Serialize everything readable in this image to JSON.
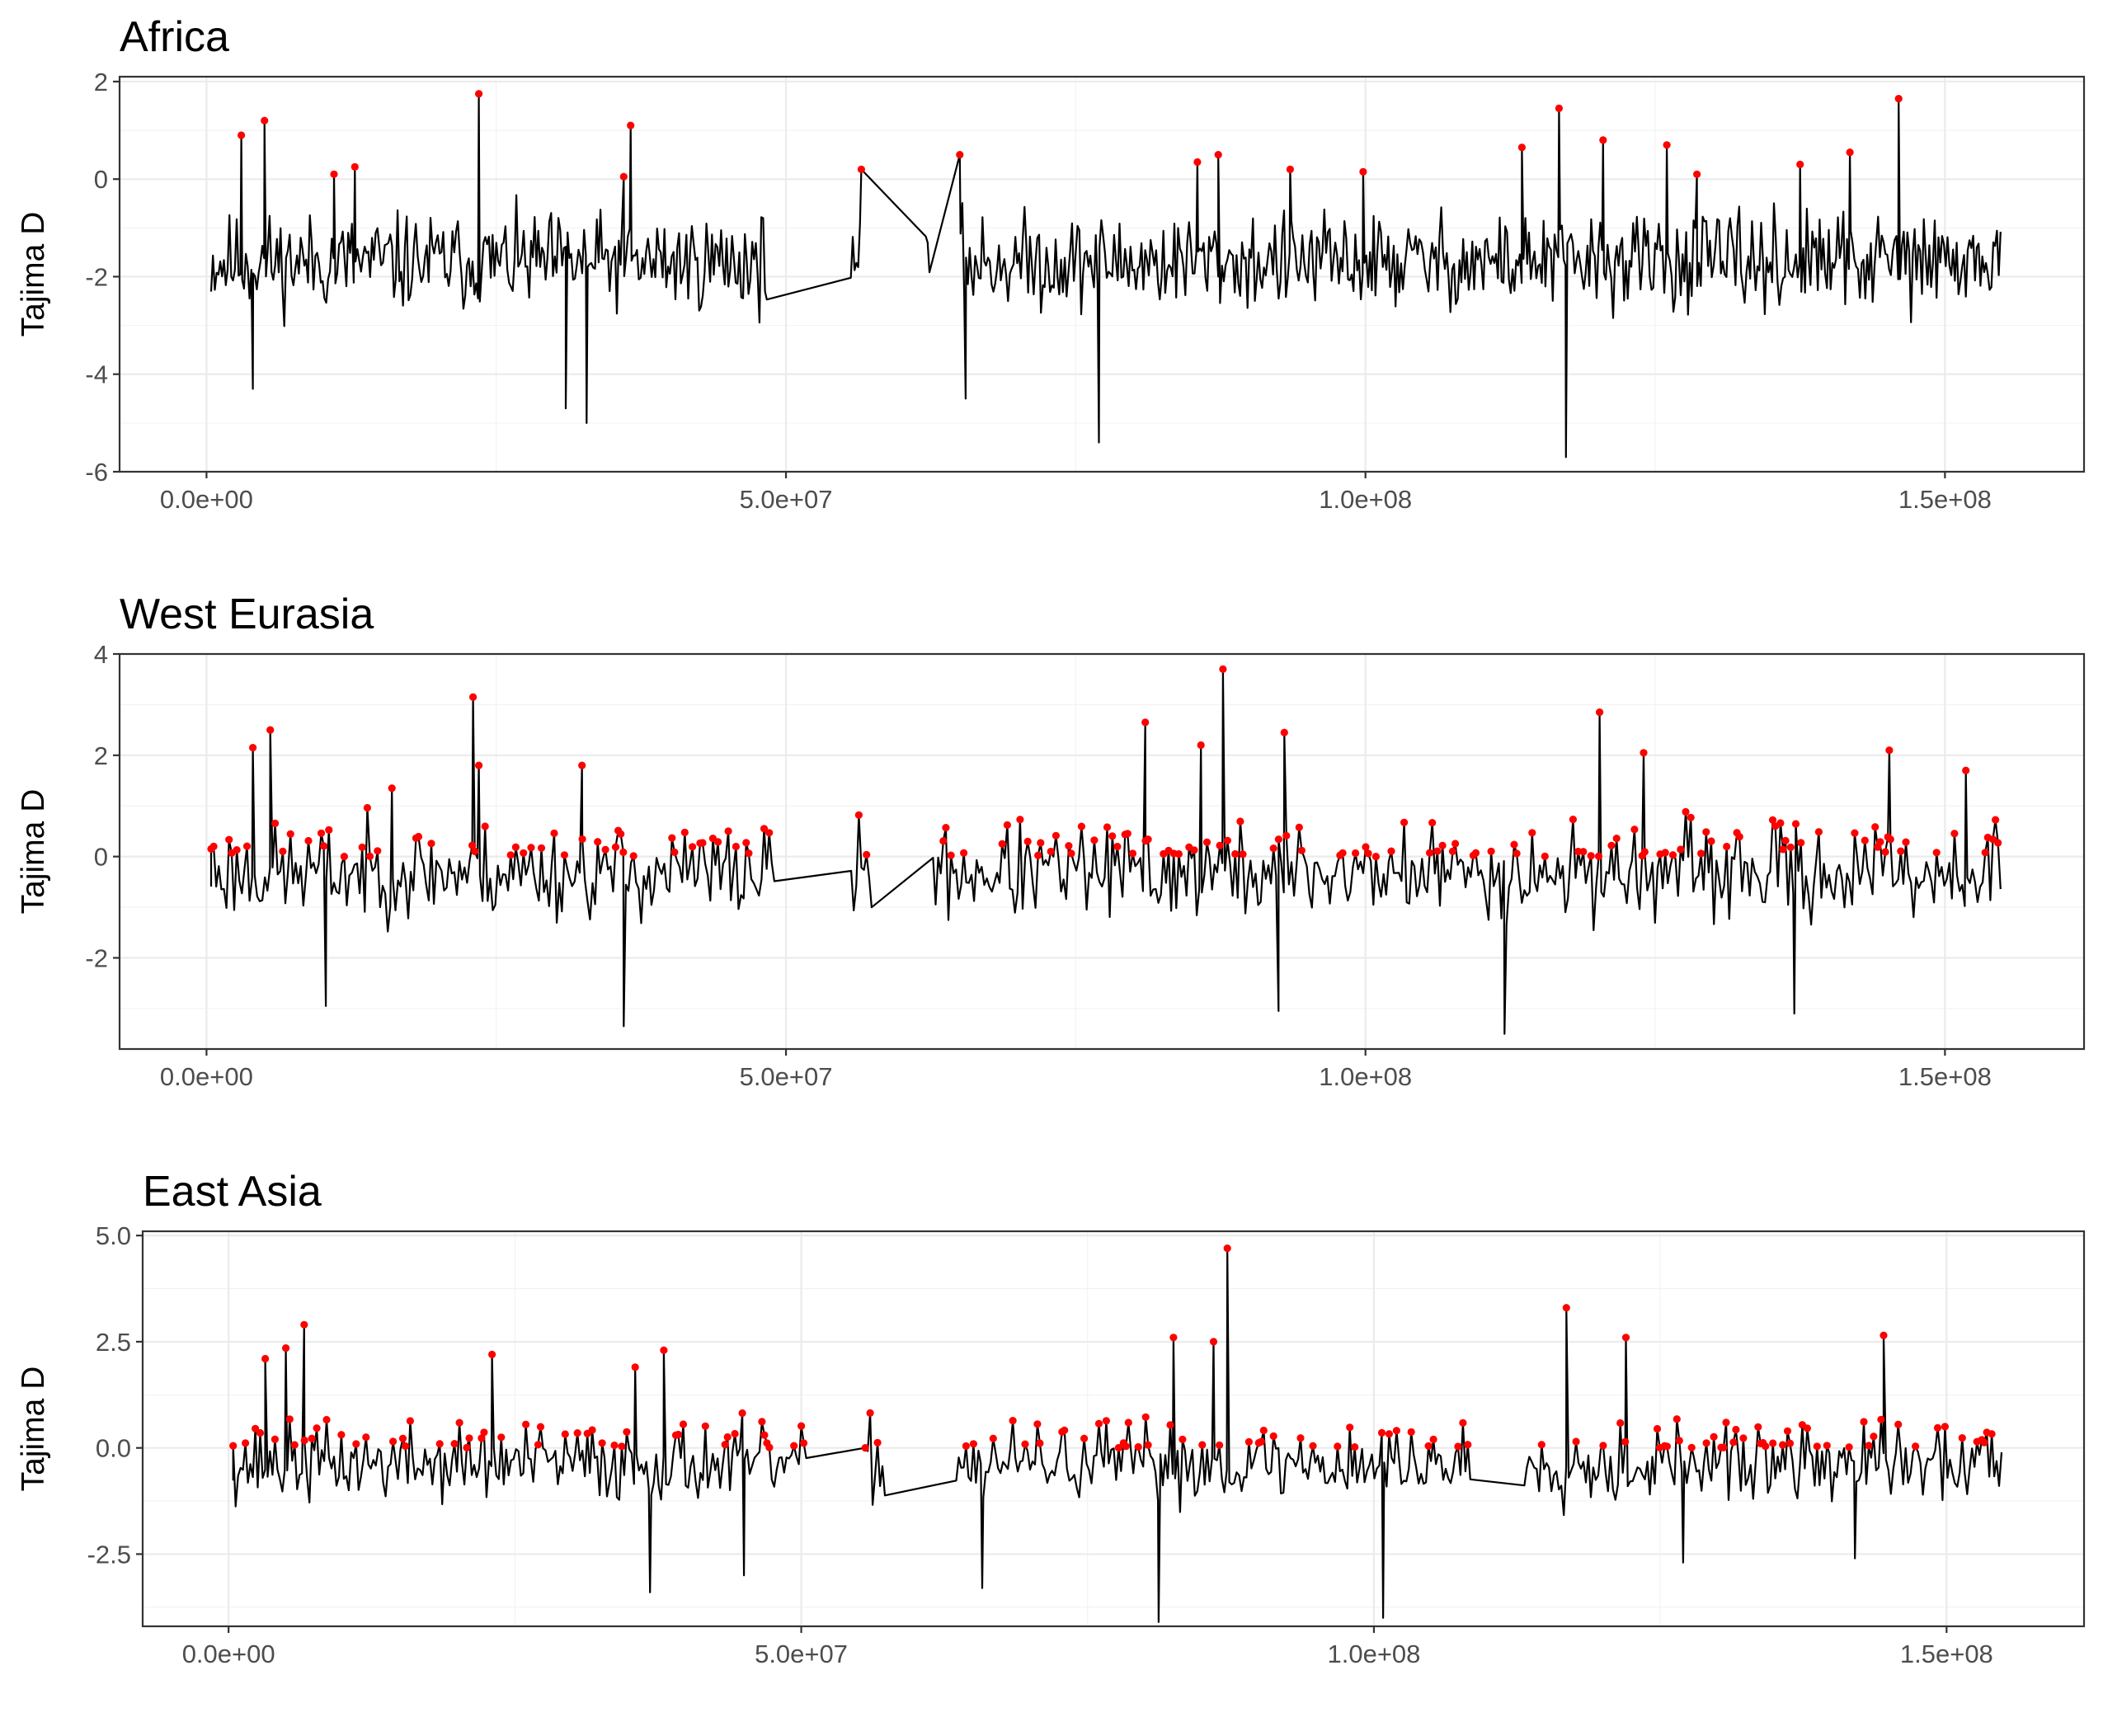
{
  "chart_data": [
    {
      "type": "line",
      "title": "Africa",
      "ylabel": "Tajima D",
      "xlabel": "",
      "xlim": [
        -7500000,
        162000000
      ],
      "ylim": [
        -6.0,
        2.1
      ],
      "x_ticks": [
        0,
        50000000,
        100000000,
        150000000
      ],
      "x_tick_labels": [
        "0.0e+00",
        "5.0e+07",
        "1.0e+08",
        "1.5e+08"
      ],
      "y_ticks": [
        -6,
        -4,
        -2,
        0,
        2
      ],
      "y_tick_labels": [
        "-6",
        "-4",
        "-2",
        "0",
        "2"
      ],
      "line_color": "#000000",
      "highlight_color": "#ff0000",
      "highlight_threshold": 0.0,
      "seed": 11,
      "n_points": 980,
      "x_start": 400000,
      "x_end": 154800000,
      "mean": -1.7,
      "spread": 0.9,
      "gaps": [
        [
          48500000,
          55500000
        ],
        [
          56500000,
          62000000
        ],
        [
          62500000,
          65000000
        ]
      ],
      "anchors": [
        [
          3000000,
          0.9
        ],
        [
          5000000,
          1.2
        ],
        [
          11000000,
          0.1
        ],
        [
          12800000,
          0.25
        ],
        [
          23500000,
          1.75
        ],
        [
          36000000,
          0.05
        ],
        [
          36600000,
          1.1
        ],
        [
          56500000,
          0.2
        ],
        [
          65000000,
          0.5
        ],
        [
          85500000,
          0.35
        ],
        [
          87300000,
          0.5
        ],
        [
          93500000,
          0.2
        ],
        [
          99800000,
          0.15
        ],
        [
          113500000,
          0.65
        ],
        [
          116700000,
          1.45
        ],
        [
          120500000,
          0.8
        ],
        [
          126000000,
          0.7
        ],
        [
          128600000,
          0.1
        ],
        [
          137500000,
          0.3
        ],
        [
          141800000,
          0.55
        ],
        [
          146000000,
          1.65
        ],
        [
          77000000,
          -5.4
        ],
        [
          117300000,
          -5.7
        ],
        [
          32800000,
          -5.0
        ],
        [
          31000000,
          -4.7
        ],
        [
          4000000,
          -4.3
        ],
        [
          65500000,
          -4.5
        ]
      ]
    },
    {
      "type": "line",
      "title": "West Eurasia",
      "ylabel": "Tajima D",
      "xlabel": "",
      "xlim": [
        -7500000,
        162000000
      ],
      "ylim": [
        -3.8,
        4.0
      ],
      "x_ticks": [
        0,
        50000000,
        100000000,
        150000000
      ],
      "x_tick_labels": [
        "0.0e+00",
        "5.0e+07",
        "1.0e+08",
        "1.5e+08"
      ],
      "y_ticks": [
        -2,
        0,
        2,
        4
      ],
      "y_tick_labels": [
        "-2",
        "0",
        "2",
        "4"
      ],
      "line_color": "#000000",
      "highlight_color": "#ff0000",
      "highlight_threshold": 0.0,
      "seed": 23,
      "n_points": 700,
      "x_start": 400000,
      "x_end": 154800000,
      "mean": -0.3,
      "spread": 0.85,
      "gaps": [
        [
          49000000,
          55500000
        ],
        [
          57500000,
          62500000
        ]
      ],
      "anchors": [
        [
          400000,
          0.15
        ],
        [
          4000000,
          2.15
        ],
        [
          5500000,
          2.5
        ],
        [
          23000000,
          3.15
        ],
        [
          23500000,
          1.8
        ],
        [
          32400000,
          1.8
        ],
        [
          16000000,
          1.35
        ],
        [
          81000000,
          2.65
        ],
        [
          85800000,
          2.2
        ],
        [
          87700000,
          3.7
        ],
        [
          93000000,
          2.45
        ],
        [
          120200000,
          2.85
        ],
        [
          124000000,
          2.05
        ],
        [
          145200000,
          2.1
        ],
        [
          151800000,
          1.7
        ],
        [
          36000000,
          -3.35
        ],
        [
          112000000,
          -3.5
        ],
        [
          10300000,
          -2.95
        ],
        [
          92500000,
          -3.05
        ],
        [
          137000000,
          -3.1
        ]
      ]
    },
    {
      "type": "line",
      "title": "East Asia",
      "ylabel": "Tajima D",
      "xlabel": "",
      "xlim": [
        -7500000,
        162000000
      ],
      "ylim": [
        -4.2,
        5.1
      ],
      "x_ticks": [
        0,
        50000000,
        100000000,
        150000000
      ],
      "x_tick_labels": [
        "0.0e+00",
        "5.0e+07",
        "1.0e+08",
        "1.5e+08"
      ],
      "y_ticks": [
        -2.5,
        0.0,
        2.5,
        5.0
      ],
      "y_tick_labels": [
        "-2.5",
        "0.0",
        "2.5",
        "5.0"
      ],
      "line_color": "#000000",
      "highlight_color": "#ff0000",
      "highlight_threshold": 0.0,
      "seed": 37,
      "n_points": 720,
      "x_start": 400000,
      "x_end": 154800000,
      "mean": -0.35,
      "spread": 0.85,
      "gaps": [
        [
          50500000,
          55500000
        ],
        [
          57500000,
          63500000
        ],
        [
          108500000,
          113000000
        ]
      ],
      "anchors": [
        [
          400000,
          0.05
        ],
        [
          6600000,
          2.9
        ],
        [
          5000000,
          2.35
        ],
        [
          3200000,
          2.1
        ],
        [
          23000000,
          2.2
        ],
        [
          38000000,
          2.3
        ],
        [
          35500000,
          1.9
        ],
        [
          82500000,
          2.6
        ],
        [
          87200000,
          4.7
        ],
        [
          86000000,
          2.5
        ],
        [
          116800000,
          3.3
        ],
        [
          122000000,
          2.6
        ],
        [
          144500000,
          2.65
        ],
        [
          81200000,
          -4.1
        ],
        [
          100800000,
          -4.0
        ],
        [
          36800000,
          -3.4
        ],
        [
          65800000,
          -3.3
        ],
        [
          45000000,
          -3.0
        ],
        [
          127000000,
          -2.7
        ],
        [
          142000000,
          -2.6
        ]
      ]
    }
  ]
}
